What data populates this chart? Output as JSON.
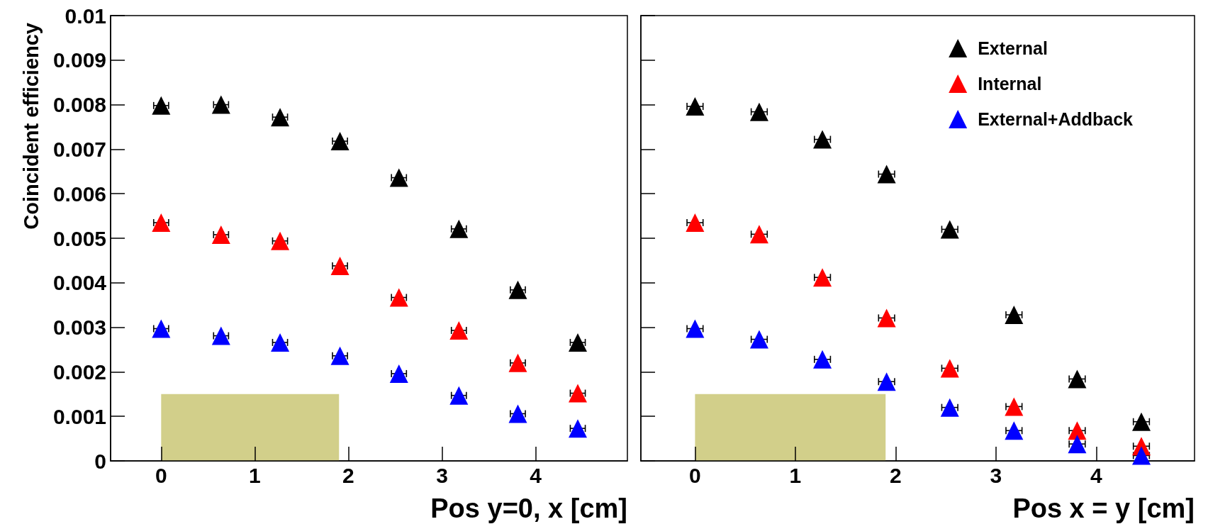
{
  "chart_data": [
    {
      "type": "scatter",
      "ylabel": "Coincident efficiency",
      "xlabel": "Pos y=0, x [cm]",
      "x": [
        0,
        0.64,
        1.27,
        1.91,
        2.54,
        3.18,
        3.81,
        4.45
      ],
      "xlim": [
        -0.54,
        4.98
      ],
      "xticks": [
        0,
        1,
        2,
        3,
        4
      ],
      "ylim": [
        0,
        0.01
      ],
      "yticks": [
        0,
        0.001,
        0.002,
        0.003,
        0.004,
        0.005,
        0.006,
        0.007,
        0.008,
        0.009,
        0.01
      ],
      "marker": "triangle",
      "grid": false,
      "legend": false,
      "series": [
        {
          "color": "#000000",
          "values": [
            0.00798,
            0.008,
            0.00772,
            0.00718,
            0.00636,
            0.00521,
            0.00384,
            0.00266
          ],
          "xerrors": [
            0.08,
            0.08,
            0.08,
            0.08,
            0.08,
            0.08,
            0.08,
            0.08
          ]
        },
        {
          "color": "#ff0000",
          "values": [
            0.00535,
            0.00508,
            0.00494,
            0.00438,
            0.00367,
            0.00293,
            0.0022,
            0.00152
          ],
          "xerrors": [
            0.08,
            0.08,
            0.08,
            0.08,
            0.08,
            0.08,
            0.08,
            0.08
          ]
        },
        {
          "color": "#0000ff",
          "values": [
            0.00297,
            0.00281,
            0.00266,
            0.00236,
            0.00196,
            0.00147,
            0.00106,
            0.00073
          ],
          "xerrors": [
            0.08,
            0.08,
            0.08,
            0.08,
            0.08,
            0.08,
            0.08,
            0.08
          ]
        }
      ],
      "bands": [
        {
          "axis": "x",
          "from": 0,
          "to": 1.9,
          "color": "#d2cf8a"
        }
      ]
    },
    {
      "type": "scatter",
      "xlabel": "Pos x = y [cm]",
      "x": [
        0,
        0.64,
        1.27,
        1.91,
        2.54,
        3.18,
        3.81,
        4.45
      ],
      "xlim": [
        -0.54,
        4.98
      ],
      "xticks": [
        0,
        1,
        2,
        3,
        4
      ],
      "ylim": [
        0,
        0.01
      ],
      "yticks": [
        0,
        0.001,
        0.002,
        0.003,
        0.004,
        0.005,
        0.006,
        0.007,
        0.008,
        0.009,
        0.01
      ],
      "tick_labels": "x",
      "marker": "triangle",
      "grid": false,
      "legend": "top right",
      "series": [
        {
          "name": "External",
          "color": "#000000",
          "values": [
            0.00796,
            0.00784,
            0.00722,
            0.00644,
            0.0052,
            0.00328,
            0.00184,
            0.00088
          ],
          "xerrors": [
            0.08,
            0.08,
            0.08,
            0.08,
            0.08,
            0.08,
            0.08,
            0.08
          ]
        },
        {
          "name": "Internal",
          "color": "#ff0000",
          "values": [
            0.00535,
            0.00509,
            0.00412,
            0.00321,
            0.00208,
            0.00122,
            0.00068,
            0.00033
          ],
          "xerrors": [
            0.08,
            0.08,
            0.08,
            0.08,
            0.08,
            0.08,
            0.08,
            0.08
          ]
        },
        {
          "name": "External+Addback",
          "color": "#0000ff",
          "values": [
            0.00297,
            0.00273,
            0.00228,
            0.00178,
            0.0012,
            0.00068,
            0.00038,
            0.00012
          ],
          "xerrors": [
            0.08,
            0.08,
            0.08,
            0.08,
            0.08,
            0.08,
            0.08,
            0.08
          ]
        }
      ],
      "bands": [
        {
          "axis": "x",
          "from": 0,
          "to": 1.9,
          "color": "#d2cf8a"
        }
      ]
    }
  ]
}
